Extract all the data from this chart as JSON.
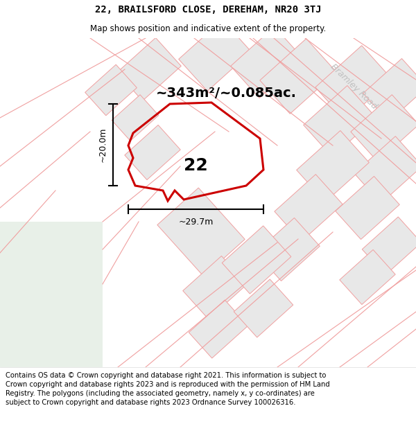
{
  "title": "22, BRAILSFORD CLOSE, DEREHAM, NR20 3TJ",
  "subtitle": "Map shows position and indicative extent of the property.",
  "area_text": "~343m²/~0.085ac.",
  "number_label": "22",
  "dim_h": "~29.7m",
  "dim_v": "~20.0m",
  "road_label": "Bramley Road",
  "copyright_text": "Contains OS data © Crown copyright and database right 2021. This information is subject to Crown copyright and database rights 2023 and is reproduced with the permission of HM Land Registry. The polygons (including the associated geometry, namely x, y co-ordinates) are subject to Crown copyright and database rights 2023 Ordnance Survey 100026316.",
  "bg_color": "#ffffff",
  "parcel_edge": "#f0a0a0",
  "parcel_fill": "#e8e8e8",
  "green_color": "#e8f0e8",
  "highlight_color": "#cc0000",
  "road_text_color": "#c0c0c0",
  "title_fontsize": 10,
  "subtitle_fontsize": 8.5,
  "copyright_fontsize": 7.2,
  "area_fontsize": 14,
  "label_fontsize": 18
}
